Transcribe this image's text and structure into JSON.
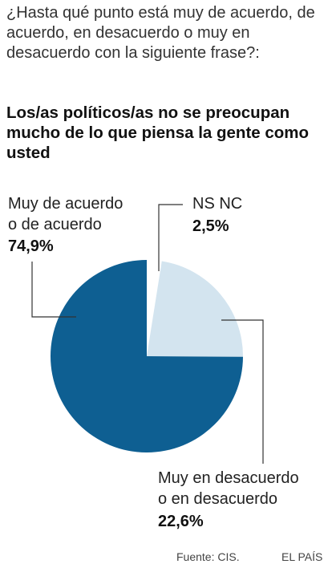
{
  "question": "¿Hasta qué punto está muy de acuerdo, de acuerdo, en desacuerdo o muy en desacuerdo con la siguiente frase?:",
  "statement": "Los/as políticos/as no se preocupan mucho de lo que piensa la gente como usted",
  "chart_data": {
    "type": "pie",
    "slices": [
      {
        "label_lines": [
          "Muy de acuerdo",
          "o de acuerdo"
        ],
        "value_label": "74,9%",
        "value": 74.9,
        "color": "#0e5f92"
      },
      {
        "label_lines": [
          "NS NC"
        ],
        "value_label": "2,5%",
        "value": 2.5,
        "color": "#ffffff"
      },
      {
        "label_lines": [
          "Muy en desacuerdo",
          "o en desacuerdo"
        ],
        "value_label": "22,6%",
        "value": 22.6,
        "color": "#d3e4ef"
      }
    ]
  },
  "source": "Fuente: CIS.",
  "brand": "EL PAÍS"
}
